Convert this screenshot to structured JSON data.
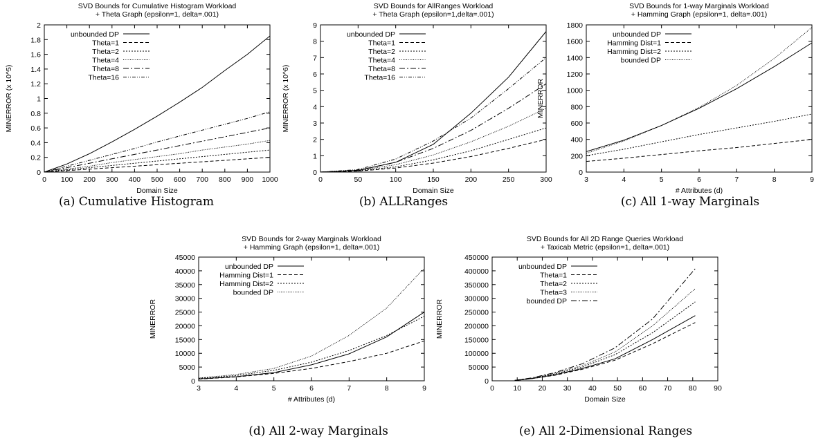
{
  "chart_data": [
    {
      "type": "line",
      "title": "SVD Bounds for Cumulative Histogram Workload",
      "subtitle": "+ Theta Graph (epsilon=1, delta=.001)",
      "xlabel": "Domain Size",
      "ylabel": "MINERROR (x 10^5)",
      "caption": "(a) Cumulative Histogram",
      "xlim": [
        0,
        1000
      ],
      "ylim": [
        0,
        2
      ],
      "xticks": [
        "0",
        "100",
        "200",
        "300",
        "400",
        "500",
        "600",
        "700",
        "800",
        "900",
        "1000"
      ],
      "yticks": [
        "0",
        "0.2",
        "0.4",
        "0.6",
        "0.8",
        "1",
        "1.2",
        "1.4",
        "1.6",
        "1.8",
        "2"
      ],
      "grid": false,
      "legend": "top-left",
      "x": [
        0,
        100,
        200,
        300,
        400,
        500,
        600,
        700,
        800,
        900,
        1000
      ],
      "series": [
        {
          "name": "unbounded DP",
          "dash": "",
          "values": [
            0,
            0.11,
            0.25,
            0.41,
            0.58,
            0.76,
            0.95,
            1.15,
            1.38,
            1.6,
            1.85
          ]
        },
        {
          "name": "Theta=1",
          "dash": "5,3",
          "values": [
            0,
            0.02,
            0.04,
            0.06,
            0.08,
            0.1,
            0.12,
            0.14,
            0.16,
            0.18,
            0.2
          ]
        },
        {
          "name": "Theta=2",
          "dash": "2,2",
          "values": [
            0,
            0.03,
            0.06,
            0.09,
            0.12,
            0.15,
            0.18,
            0.21,
            0.24,
            0.27,
            0.3
          ]
        },
        {
          "name": "Theta=4",
          "dash": "1,1.5",
          "values": [
            0,
            0.04,
            0.08,
            0.13,
            0.17,
            0.21,
            0.25,
            0.3,
            0.34,
            0.38,
            0.43
          ]
        },
        {
          "name": "Theta=8",
          "dash": "8,3,2,3",
          "values": [
            0,
            0.06,
            0.12,
            0.18,
            0.24,
            0.3,
            0.36,
            0.42,
            0.48,
            0.54,
            0.6
          ]
        },
        {
          "name": "Theta=16",
          "dash": "5,2,1,2,1,2",
          "values": [
            0,
            0.08,
            0.16,
            0.24,
            0.32,
            0.41,
            0.49,
            0.57,
            0.65,
            0.73,
            0.82
          ]
        }
      ]
    },
    {
      "type": "line",
      "title": "SVD Bounds for AllRanges Workload",
      "subtitle": "+ Theta Graph (epsilon=1,delta=.001)",
      "xlabel": "Domain Size",
      "ylabel": "MINERROR (x 10^6)",
      "caption": "(b) ALLRanges",
      "xlim": [
        0,
        300
      ],
      "ylim": [
        0,
        9
      ],
      "xticks": [
        "0",
        "50",
        "100",
        "150",
        "200",
        "250",
        "300"
      ],
      "yticks": [
        "0",
        "1",
        "2",
        "3",
        "4",
        "5",
        "6",
        "7",
        "8",
        "9"
      ],
      "grid": false,
      "legend": "top-left",
      "x": [
        0,
        50,
        100,
        150,
        200,
        250,
        300
      ],
      "series": [
        {
          "name": "unbounded DP",
          "dash": "",
          "values": [
            0,
            0.1,
            0.6,
            1.7,
            3.6,
            5.8,
            8.6
          ]
        },
        {
          "name": "Theta=1",
          "dash": "5,3",
          "values": [
            0,
            0.06,
            0.25,
            0.55,
            0.95,
            1.45,
            2.0
          ]
        },
        {
          "name": "Theta=2",
          "dash": "2,2",
          "values": [
            0,
            0.08,
            0.32,
            0.75,
            1.3,
            2.0,
            2.7
          ]
        },
        {
          "name": "Theta=4",
          "dash": "1,1.5",
          "values": [
            0,
            0.1,
            0.45,
            1.05,
            1.85,
            2.8,
            3.9
          ]
        },
        {
          "name": "Theta=8",
          "dash": "8,3,2,3",
          "values": [
            0,
            0.12,
            0.6,
            1.45,
            2.55,
            3.9,
            5.4
          ]
        },
        {
          "name": "Theta=16",
          "dash": "5,2,1,2,1,2",
          "values": [
            0,
            0.15,
            0.8,
            1.9,
            3.3,
            5.1,
            7.0
          ]
        }
      ]
    },
    {
      "type": "line",
      "title": "SVD Bounds for 1-way Marginals Workload",
      "subtitle": "+ Hamming Graph (epsilon=1, delta=.001)",
      "xlabel": "# Attributes (d)",
      "ylabel": "MINERROR",
      "caption": "(c) All 1-way Marginals",
      "xlim": [
        3,
        9
      ],
      "ylim": [
        0,
        1800
      ],
      "xticks": [
        "3",
        "4",
        "5",
        "6",
        "7",
        "8",
        "9"
      ],
      "yticks": [
        "0",
        "200",
        "400",
        "600",
        "800",
        "1000",
        "1200",
        "1400",
        "1600",
        "1800"
      ],
      "grid": false,
      "legend": "top-left",
      "x": [
        3,
        4,
        5,
        6,
        7,
        8,
        9
      ],
      "series": [
        {
          "name": "unbounded DP",
          "dash": "",
          "values": [
            250,
            390,
            570,
            780,
            1020,
            1290,
            1580
          ]
        },
        {
          "name": "Hamming Dist=1",
          "dash": "5,3",
          "values": [
            130,
            170,
            215,
            260,
            300,
            350,
            400
          ]
        },
        {
          "name": "Hamming Dist=2",
          "dash": "2,2",
          "values": [
            200,
            280,
            370,
            460,
            540,
            620,
            710
          ]
        },
        {
          "name": "bounded DP",
          "dash": "1,1.5",
          "values": [
            230,
            380,
            570,
            790,
            1060,
            1390,
            1770
          ]
        }
      ]
    },
    {
      "type": "line",
      "title": "SVD Bounds for 2-way Marginals Workload",
      "subtitle": "+ Hamming Graph (epsilon=1, delta=.001)",
      "xlabel": "# Attributes (d)",
      "ylabel": "MINERROR",
      "caption": "(d) All 2-way Marginals",
      "xlim": [
        3,
        9
      ],
      "ylim": [
        0,
        45000
      ],
      "xticks": [
        "3",
        "4",
        "5",
        "6",
        "7",
        "8",
        "9"
      ],
      "yticks": [
        "0",
        "5000",
        "10000",
        "15000",
        "20000",
        "25000",
        "30000",
        "35000",
        "40000",
        "45000"
      ],
      "grid": false,
      "legend": "top-left",
      "x": [
        3,
        4,
        5,
        6,
        7,
        8,
        9
      ],
      "series": [
        {
          "name": "unbounded DP",
          "dash": "",
          "values": [
            700,
            1500,
            3000,
            5800,
            9800,
            16000,
            25000
          ]
        },
        {
          "name": "Hamming Dist=1",
          "dash": "5,3",
          "values": [
            600,
            1400,
            2700,
            4500,
            7000,
            10000,
            14500
          ]
        },
        {
          "name": "Hamming Dist=2",
          "dash": "2,2",
          "values": [
            900,
            1900,
            3800,
            6800,
            11000,
            16500,
            23500
          ]
        },
        {
          "name": "bounded DP",
          "dash": "1,1.5",
          "values": [
            1000,
            2300,
            4500,
            9000,
            16500,
            26500,
            41000
          ]
        }
      ]
    },
    {
      "type": "line",
      "title": "SVD Bounds for All 2D Range Queries Workload",
      "subtitle": "+ Taxicab Metric (epsilon=1, delta=.001)",
      "xlabel": "Domain Size",
      "ylabel": "MINERROR",
      "caption": "(e) All 2-Dimensional Ranges",
      "xlim": [
        0,
        90
      ],
      "ylim": [
        0,
        450000
      ],
      "xticks": [
        "0",
        "10",
        "20",
        "30",
        "40",
        "50",
        "60",
        "70",
        "80",
        "90"
      ],
      "yticks": [
        "0",
        "50000",
        "100000",
        "150000",
        "200000",
        "250000",
        "300000",
        "350000",
        "400000",
        "450000"
      ],
      "grid": false,
      "legend": "top-left",
      "x": [
        9,
        16,
        25,
        36,
        49,
        64,
        81
      ],
      "series": [
        {
          "name": "unbounded DP",
          "dash": "",
          "values": [
            1000,
            8000,
            22000,
            45000,
            80000,
            150000,
            237000
          ]
        },
        {
          "name": "Theta=1",
          "dash": "5,3",
          "values": [
            1000,
            8000,
            20000,
            42000,
            75000,
            135000,
            212000
          ]
        },
        {
          "name": "Theta=2",
          "dash": "2,2",
          "values": [
            1200,
            9000,
            25000,
            50000,
            95000,
            175000,
            287000
          ]
        },
        {
          "name": "Theta=3",
          "dash": "1,1.5",
          "values": [
            1400,
            10000,
            28000,
            55000,
            105000,
            200000,
            335000
          ]
        },
        {
          "name": "bounded DP",
          "dash": "8,3,2,3",
          "values": [
            1500,
            11000,
            30000,
            62000,
            120000,
            225000,
            408000
          ]
        }
      ]
    }
  ]
}
